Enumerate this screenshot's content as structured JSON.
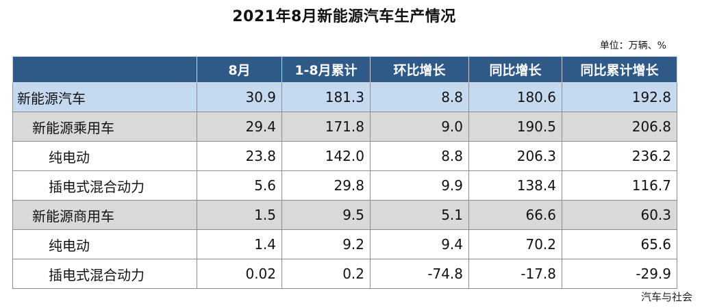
{
  "title": "2021年8月新能源汽车生产情况",
  "unit_note": "单位：万辆、%",
  "columns": [
    "",
    "8月",
    "1-8月累计",
    "环比增长",
    "同比增长",
    "同比累计增长"
  ],
  "rows": [
    {
      "label": "新能源汽车",
      "level": 0,
      "values": [
        "30.9",
        "181.3",
        "8.8",
        "180.6",
        "192.8"
      ]
    },
    {
      "label": "新能源乘用车",
      "level": 1,
      "values": [
        "29.4",
        "171.8",
        "9.0",
        "190.5",
        "206.8"
      ]
    },
    {
      "label": "纯电动",
      "level": 2,
      "values": [
        "23.8",
        "142.0",
        "8.8",
        "206.3",
        "236.2"
      ]
    },
    {
      "label": "插电式混合动力",
      "level": 2,
      "values": [
        "5.6",
        "29.8",
        "9.9",
        "138.4",
        "116.7"
      ]
    },
    {
      "label": "新能源商用车",
      "level": 1,
      "values": [
        "1.5",
        "9.5",
        "5.1",
        "66.6",
        "60.3"
      ]
    },
    {
      "label": "纯电动",
      "level": 2,
      "values": [
        "1.4",
        "9.2",
        "9.4",
        "70.2",
        "65.6"
      ]
    },
    {
      "label": "插电式混合动力",
      "level": 2,
      "values": [
        "0.02",
        "0.2",
        "-74.8",
        "-17.8",
        "-29.9"
      ]
    }
  ],
  "source_mark": "汽车与社会",
  "colors": {
    "header_bg": "#2f5987",
    "level0_bg": "#c5d9f1",
    "level1_bg": "#d9d9d9",
    "level2_bg": "#ffffff"
  }
}
